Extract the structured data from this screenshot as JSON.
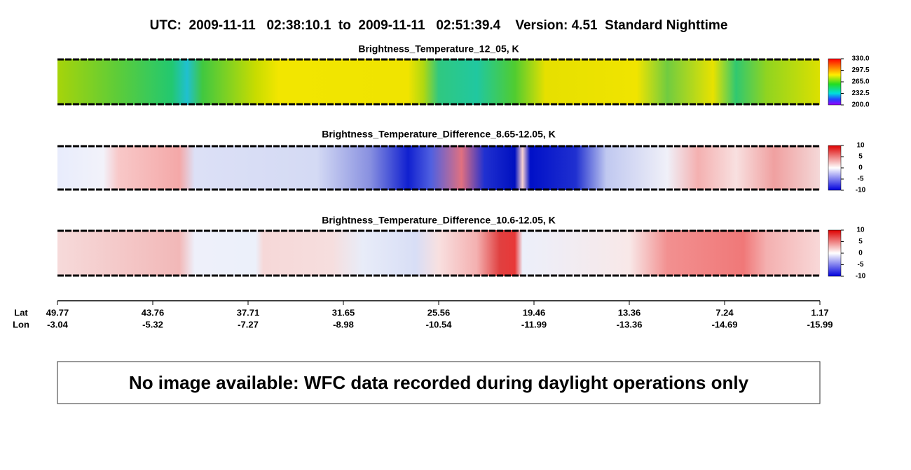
{
  "header": {
    "title": "UTC:  2009-11-11   02:38:10.1  to  2009-11-11   02:51:39.4    Version: 4.51  Standard Nighttime"
  },
  "panels": [
    {
      "title": "Brightness_Temperature_12_05, K",
      "colorbar": {
        "ticks": [
          {
            "value": 330,
            "label": "330.0"
          },
          {
            "value": 297.5,
            "label": "297.5"
          },
          {
            "value": 265,
            "label": "265.0"
          },
          {
            "value": 232.5,
            "label": "232.5"
          },
          {
            "value": 200,
            "label": "200.0"
          }
        ]
      }
    },
    {
      "title": "Brightness_Temperature_Difference_8.65-12.05, K",
      "colorbar": {
        "ticks": [
          10,
          5,
          0,
          -5,
          -10
        ]
      }
    },
    {
      "title": "Brightness_Temperature_Difference_10.6-12.05, K",
      "colorbar": {
        "ticks": [
          10,
          5,
          0,
          -5,
          -10
        ]
      }
    }
  ],
  "axis": {
    "lat_label": "Lat",
    "lon_label": "Lon",
    "lat": [
      49.77,
      43.76,
      37.71,
      31.65,
      25.56,
      19.46,
      13.36,
      7.24,
      1.17
    ],
    "lon": [
      -3.04,
      -5.32,
      -7.27,
      -8.98,
      -10.54,
      -11.99,
      -13.36,
      -14.69,
      -15.99
    ]
  },
  "message": "No image available: WFC data recorded during daylight operations only"
}
